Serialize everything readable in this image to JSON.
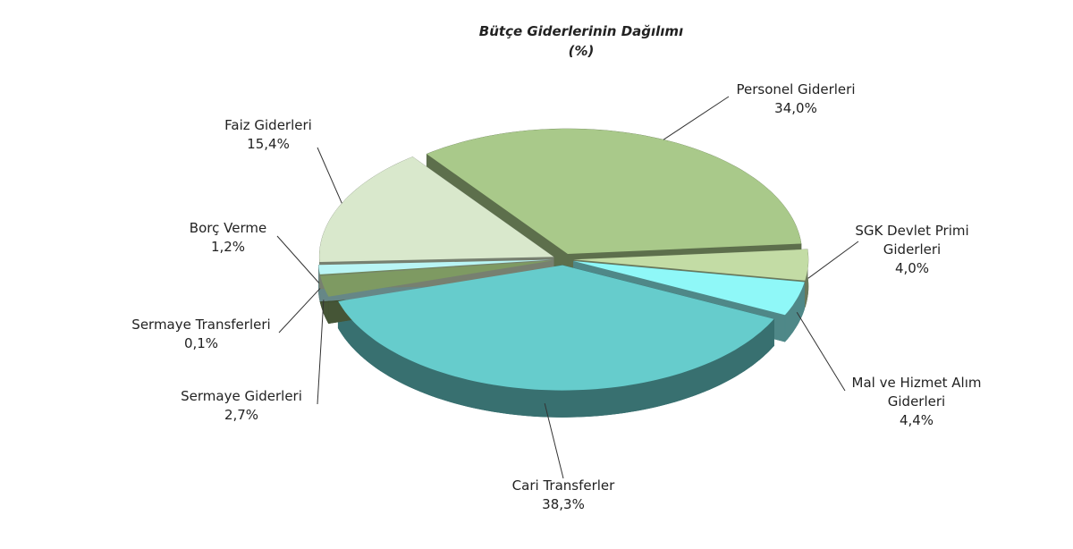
{
  "chart_data": {
    "type": "pie3d",
    "title": "Bütçe Giderlerinin Dağılımı",
    "subtitle": "(%)",
    "categories": [
      "Personel Giderleri",
      "SGK Devlet Primi Giderleri",
      "Mal ve Hizmet Alım Giderleri",
      "Cari Transferler",
      "Sermaye Giderleri",
      "Sermaye Transferleri",
      "Borç Verme",
      "Faiz Giderleri"
    ],
    "values": [
      34.0,
      4.0,
      4.4,
      38.3,
      2.7,
      0.1,
      1.2,
      15.4
    ],
    "value_labels": [
      "34,0%",
      "4,0%",
      "4,4%",
      "38,3%",
      "2,7%",
      "0,1%",
      "1,2%",
      "15,4%"
    ],
    "colors": [
      "#a9c98a",
      "#c3dca5",
      "#8ff8f8",
      "#66cccc",
      "#7e9a62",
      "#6e8a52",
      "#b9f5f5",
      "#d9e8cc"
    ]
  }
}
